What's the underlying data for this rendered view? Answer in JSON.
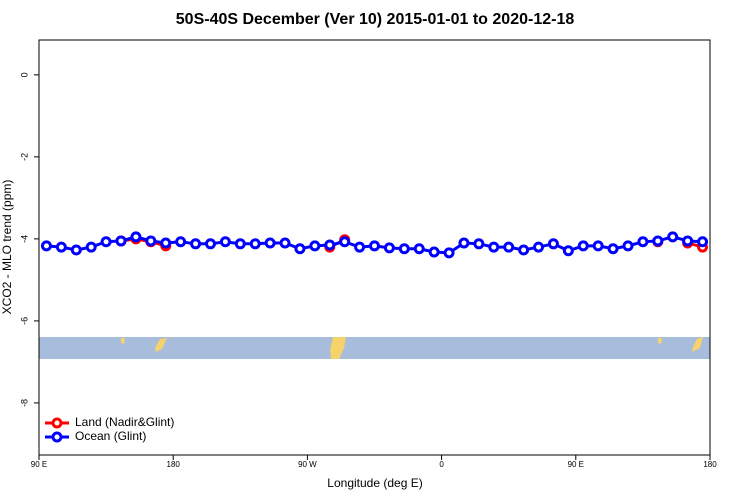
{
  "chart_data": {
    "type": "line",
    "title": "50S-40S December (Ver 10)   2015-01-01 to 2020-12-18",
    "xlabel": "Longitude (deg E)",
    "ylabel": "XCO2 - MLO trend (ppm)",
    "x": [
      95,
      105,
      115,
      125,
      135,
      145,
      155,
      165,
      175,
      185,
      195,
      205,
      215,
      225,
      235,
      245,
      255,
      265,
      275,
      285,
      295,
      305,
      315,
      325,
      335,
      345,
      355,
      365,
      375,
      385,
      395,
      405,
      415,
      425,
      435,
      445,
      455,
      465,
      475,
      485,
      495,
      505,
      515,
      525,
      535
    ],
    "series": [
      {
        "name": "Land (Nadir&Glint)",
        "color": "#ff0000",
        "values": [
          null,
          null,
          null,
          null,
          null,
          -4.05,
          -4.0,
          -4.07,
          -4.17,
          null,
          null,
          null,
          null,
          null,
          null,
          null,
          null,
          null,
          null,
          -4.2,
          -4.02,
          null,
          null,
          null,
          null,
          null,
          null,
          null,
          null,
          null,
          null,
          null,
          null,
          null,
          null,
          null,
          null,
          null,
          null,
          null,
          null,
          -4.07,
          null,
          -4.1,
          -4.2
        ]
      },
      {
        "name": "Ocean (Glint)",
        "color": "#0000ff",
        "values": [
          -4.17,
          -4.2,
          -4.27,
          -4.2,
          -4.07,
          -4.05,
          -3.95,
          -4.05,
          -4.1,
          -4.07,
          -4.12,
          -4.12,
          -4.07,
          -4.12,
          -4.12,
          -4.1,
          -4.1,
          -4.24,
          -4.17,
          -4.15,
          -4.07,
          -4.2,
          -4.17,
          -4.22,
          -4.24,
          -4.24,
          -4.32,
          -4.34,
          -4.1,
          -4.12,
          -4.2,
          -4.2,
          -4.27,
          -4.2,
          -4.12,
          -4.29,
          -4.17,
          -4.17,
          -4.24,
          -4.17,
          -4.07,
          -4.05,
          -3.95,
          -4.05,
          -4.07
        ]
      }
    ],
    "xlim": [
      90,
      540
    ],
    "xticks": [
      {
        "value": 90,
        "label": "90 E"
      },
      180,
      {
        "value": 270,
        "label": "90 W"
      },
      {
        "value": 360,
        "label": "0"
      },
      {
        "value": 450,
        "label": "90 E"
      },
      {
        "value": 540,
        "label": "180"
      }
    ],
    "ylim": [
      -9.27,
      0.85
    ],
    "yticks": [
      -8,
      -6,
      -4,
      -2,
      0
    ],
    "legend": "bottomleft"
  }
}
